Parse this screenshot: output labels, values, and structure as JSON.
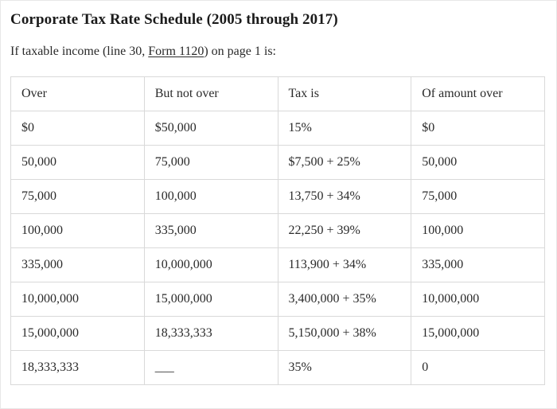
{
  "page": {
    "title": "Corporate Tax Rate Schedule (2005 through 2017)",
    "intro_before": "If taxable income (line 30, ",
    "intro_link": "Form 1120",
    "intro_after": ") on page 1 is:"
  },
  "table": {
    "headers": [
      "Over",
      "But not over",
      "Tax is",
      "Of amount over"
    ],
    "rows": [
      [
        "$0",
        "$50,000",
        "15%",
        "$0"
      ],
      [
        "50,000",
        "75,000",
        "$7,500 + 25%",
        "50,000"
      ],
      [
        "75,000",
        "100,000",
        "13,750 + 34%",
        "75,000"
      ],
      [
        "100,000",
        "335,000",
        "22,250 + 39%",
        "100,000"
      ],
      [
        "335,000",
        "10,000,000",
        "113,900 + 34%",
        "335,000"
      ],
      [
        "10,000,000",
        "15,000,000",
        "3,400,000 + 35%",
        "10,000,000"
      ],
      [
        "15,000,000",
        "18,333,333",
        "5,150,000 + 38%",
        "15,000,000"
      ],
      [
        "18,333,333",
        "___",
        "35%",
        "0"
      ]
    ]
  },
  "colors": {
    "border": "#d9d9d9",
    "text": "#2a2a2a",
    "title": "#1b1b1b",
    "background": "#ffffff"
  }
}
